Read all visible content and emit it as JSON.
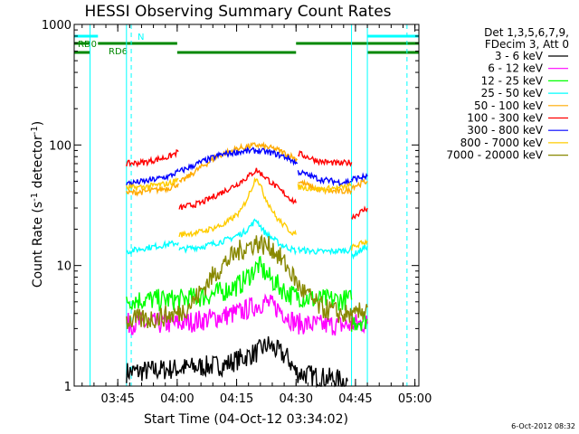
{
  "chart_data": {
    "type": "line",
    "title": "HESSI Observing Summary Count Rates",
    "xlabel": "Start Time (04-Oct-12 03:34:02)",
    "ylabel": "Count Rate (s",
    "ylabel_sup1": "-1",
    "ylabel_mid": " detector",
    "ylabel_sup2": "-1",
    "ylabel_end": ")",
    "yscale": "log",
    "ylim": [
      1,
      1000
    ],
    "xlim_min": [
      214,
      301
    ],
    "xticks": [
      {
        "min": 225,
        "label": "03:45"
      },
      {
        "min": 240,
        "label": "04:00"
      },
      {
        "min": 255,
        "label": "04:15"
      },
      {
        "min": 270,
        "label": "04:30"
      },
      {
        "min": 285,
        "label": "04:45"
      },
      {
        "min": 300,
        "label": "05:00"
      }
    ],
    "yticks": [
      {
        "v": 1,
        "label": "1"
      },
      {
        "v": 10,
        "label": "10"
      },
      {
        "v": 100,
        "label": "100"
      },
      {
        "v": 1000,
        "label": "1000"
      }
    ],
    "legend_header": [
      "Det 1,3,5,6,7,9,",
      "FDecim 3, Att 0"
    ],
    "legend_position": "right, outside plot",
    "series": [
      {
        "name": "3 - 6 keV",
        "color": "#000000",
        "segments": [
          [
            [
              227.2,
              1.3
            ],
            [
              240.5,
              1.4
            ],
            [
              252,
              1.5
            ],
            [
              260,
              1.9
            ],
            [
              263,
              2.2
            ],
            [
              268,
              1.7
            ],
            [
              270,
              1.3
            ],
            [
              275,
              1.2
            ],
            [
              283,
              1.1
            ]
          ]
        ]
      },
      {
        "name": "6 - 12 keV",
        "color": "#ff00ff",
        "segments": [
          [
            [
              227.2,
              3.3
            ],
            [
              232,
              3.3
            ],
            [
              240.5,
              3.3
            ],
            [
              248,
              3.6
            ],
            [
              256,
              4.1
            ],
            [
              262,
              5.0
            ],
            [
              266,
              4.3
            ],
            [
              270,
              3.3
            ],
            [
              276,
              3.2
            ],
            [
              281,
              3.2
            ],
            [
              284,
              3.2
            ]
          ],
          [
            [
              284,
              3.3
            ],
            [
              288,
              3.3
            ]
          ]
        ]
      },
      {
        "name": "12 - 25 keV",
        "color": "#00ff00",
        "segments": [
          [
            [
              227.2,
              5.2
            ],
            [
              233,
              5.2
            ],
            [
              240.5,
              5.2
            ],
            [
              246,
              5.5
            ],
            [
              251,
              6.0
            ],
            [
              256,
              7.0
            ],
            [
              260.5,
              10.0
            ],
            [
              264,
              7.5
            ],
            [
              268,
              5.8
            ],
            [
              275,
              5.2
            ],
            [
              281,
              5.2
            ],
            [
              284,
              5.2
            ]
          ],
          [
            [
              284,
              3.4
            ],
            [
              288,
              3.6
            ]
          ]
        ]
      },
      {
        "name": "25 - 50 keV",
        "color": "#00ffff",
        "segments": [
          [
            [
              227.2,
              13.0
            ],
            [
              232,
              14.0
            ],
            [
              238,
              15.0
            ],
            [
              240.3,
              15.5
            ]
          ],
          [
            [
              240.5,
              13.5
            ],
            [
              247,
              14.5
            ],
            [
              253,
              16.5
            ],
            [
              257,
              19.0
            ],
            [
              260,
              24.0
            ],
            [
              262,
              19.0
            ],
            [
              266,
              15.0
            ],
            [
              270,
              13.2
            ]
          ],
          [
            [
              270.5,
              13.5
            ],
            [
              276,
              13.0
            ],
            [
              281,
              13.2
            ],
            [
              284,
              13.5
            ]
          ],
          [
            [
              284,
              12.0
            ],
            [
              288,
              14.5
            ]
          ]
        ]
      },
      {
        "name": "50 - 100 keV",
        "color": "#ffaa00",
        "segments": [
          [
            [
              227.2,
              40.0
            ],
            [
              232,
              41.0
            ],
            [
              238,
              44.0
            ],
            [
              240.3,
              48.0
            ]
          ],
          [
            [
              240.5,
              48.0
            ],
            [
              245,
              62.0
            ],
            [
              250,
              80.0
            ],
            [
              255,
              93.0
            ],
            [
              260,
              100.0
            ],
            [
              265,
              92.0
            ],
            [
              269,
              80.0
            ],
            [
              270.3,
              75.0
            ]
          ],
          [
            [
              270.5,
              50.0
            ],
            [
              276,
              42.0
            ],
            [
              281,
              41.0
            ],
            [
              284,
              42.0
            ]
          ],
          [
            [
              284,
              45.0
            ],
            [
              288,
              50.0
            ]
          ]
        ]
      },
      {
        "name": "100 - 300 keV",
        "color": "#ff0000",
        "segments": [
          [
            [
              227.2,
              70.0
            ],
            [
              232,
              72.0
            ],
            [
              238,
              80.0
            ],
            [
              240.3,
              88.0
            ]
          ],
          [
            [
              240.5,
              30.0
            ],
            [
              246,
              33.0
            ],
            [
              251,
              40.0
            ],
            [
              255,
              47.0
            ],
            [
              258,
              55.0
            ],
            [
              260,
              62.0
            ],
            [
              262,
              55.0
            ],
            [
              266,
              42.0
            ],
            [
              270,
              33.0
            ]
          ],
          [
            [
              270.5,
              85.0
            ],
            [
              276,
              73.0
            ],
            [
              281,
              70.0
            ],
            [
              284,
              72.0
            ]
          ],
          [
            [
              284,
              25.0
            ],
            [
              288,
              30.0
            ]
          ]
        ]
      },
      {
        "name": "300 - 800 keV",
        "color": "#0000ff",
        "segments": [
          [
            [
              227.2,
              48.0
            ],
            [
              232,
              50.0
            ],
            [
              238,
              55.0
            ],
            [
              240.3,
              60.0
            ]
          ],
          [
            [
              240.5,
              60.0
            ],
            [
              246,
              72.0
            ],
            [
              251,
              83.0
            ],
            [
              256,
              88.0
            ],
            [
              260,
              90.0
            ],
            [
              264,
              86.0
            ],
            [
              268,
              78.0
            ],
            [
              270.3,
              70.0
            ]
          ],
          [
            [
              270.5,
              60.0
            ],
            [
              276,
              52.0
            ],
            [
              281,
              49.0
            ],
            [
              284,
              50.0
            ]
          ],
          [
            [
              284,
              52.0
            ],
            [
              288,
              55.0
            ]
          ]
        ]
      },
      {
        "name": "800 - 7000 keV",
        "color": "#ffcc00",
        "segments": [
          [
            [
              227.2,
              44.0
            ],
            [
              232,
              45.0
            ],
            [
              238,
              48.0
            ],
            [
              240.3,
              52.0
            ]
          ],
          [
            [
              240.5,
              18.0
            ],
            [
              246,
              19.0
            ],
            [
              252,
              22.0
            ],
            [
              256,
              28.0
            ],
            [
              258,
              38.0
            ],
            [
              260,
              55.0
            ],
            [
              262,
              38.0
            ],
            [
              265,
              25.0
            ],
            [
              268,
              20.0
            ],
            [
              270,
              18.0
            ]
          ],
          [
            [
              270.5,
              45.0
            ],
            [
              276,
              43.0
            ],
            [
              281,
              44.0
            ],
            [
              284,
              46.0
            ]
          ],
          [
            [
              284,
              14.0
            ],
            [
              288,
              16.0
            ]
          ]
        ]
      },
      {
        "name": "7000 - 20000 keV",
        "color": "#888800",
        "segments": [
          [
            [
              227.2,
              3.5
            ],
            [
              233,
              3.6
            ],
            [
              240.5,
              4.0
            ],
            [
              244,
              5.0
            ],
            [
              248,
              7.5
            ],
            [
              252,
              10.5
            ],
            [
              256,
              13.5
            ],
            [
              260,
              15.5
            ],
            [
              264,
              14.0
            ],
            [
              268,
              9.5
            ],
            [
              271,
              6.5
            ],
            [
              276,
              4.5
            ],
            [
              281,
              4.0
            ],
            [
              284,
              3.8
            ]
          ],
          [
            [
              284,
              3.6
            ],
            [
              288,
              4.5
            ]
          ]
        ]
      }
    ],
    "flag_lines": [
      {
        "label": "N",
        "color": "#00ffff",
        "segments": [
          [
            214,
            220
          ],
          [
            288,
            301
          ]
        ]
      },
      {
        "label": "RD0",
        "color": "#008800",
        "segments": [
          [
            214,
            218
          ],
          [
            220,
            240
          ],
          [
            270,
            288
          ],
          [
            288,
            301
          ]
        ]
      },
      {
        "label": "RD6",
        "color": "#008800",
        "segments": [
          [
            214,
            218
          ],
          [
            240,
            270
          ],
          [
            288,
            301
          ]
        ]
      }
    ]
  },
  "timestamp": "6-Oct-2012 08:32"
}
